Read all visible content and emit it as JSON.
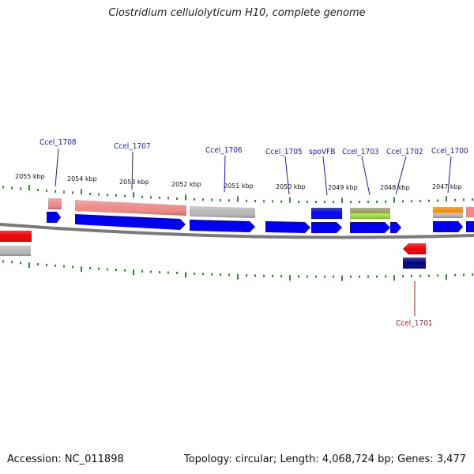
{
  "header": {
    "title": "Clostridium cellulolyticum H10, complete genome"
  },
  "footer": {
    "accession": "Accession: NC_011898",
    "summary": "Topology: circular; Length: 4,068,724 bp; Genes: 3,477"
  },
  "colors": {
    "label_forward": "#1a1acc",
    "label_reverse": "#cc1111",
    "backbone": "#808080",
    "tick": "#2e8b2e",
    "gene_forward": "#0000ee",
    "gene_reverse_red": "#ee0000",
    "gene_grey": "#b8b8b8",
    "gene_salmon": "#f08a8a",
    "gene_olive": "#9a9a5a",
    "gene_lime": "#a8e84a",
    "gene_orange": "#ee8800",
    "gene_navy": "#000080"
  },
  "scale": {
    "labels": [
      "2055 kbp",
      "2054 kbp",
      "2053 kbp",
      "2052 kbp",
      "2051 kbp",
      "2050 kbp",
      "2049 kbp",
      "2048 kbp",
      "2047 kbp"
    ]
  },
  "gene_labels": [
    {
      "name": "Ccel_1708",
      "strand": "forward"
    },
    {
      "name": "Ccel_1707",
      "strand": "forward"
    },
    {
      "name": "Ccel_1706",
      "strand": "forward"
    },
    {
      "name": "Ccel_1705",
      "strand": "forward"
    },
    {
      "name": "spoVFB",
      "strand": "forward"
    },
    {
      "name": "Ccel_1703",
      "strand": "forward"
    },
    {
      "name": "Ccel_1702",
      "strand": "forward"
    },
    {
      "name": "Ccel_1700",
      "strand": "forward"
    },
    {
      "name": "Ccel_1701",
      "strand": "reverse"
    }
  ]
}
